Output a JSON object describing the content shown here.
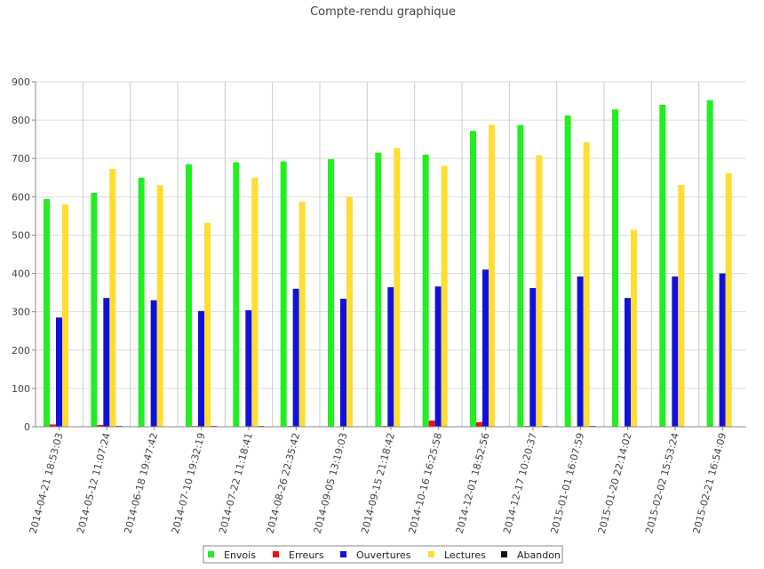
{
  "chart_data": {
    "type": "bar",
    "title": "Compte-rendu graphique",
    "xlabel": "",
    "ylabel": "",
    "ylim": [
      0,
      900
    ],
    "yticks": [
      0,
      100,
      200,
      300,
      400,
      500,
      600,
      700,
      800,
      900
    ],
    "grid": true,
    "legend_position": "bottom",
    "categories": [
      "2014-04-21 18:53:03",
      "2014-05-12 11:07:24",
      "2014-06-18 19:47:42",
      "2014-07-10 19:32:19",
      "2014-07-22 11:18:41",
      "2014-08-26 22:35:42",
      "2014-09-05 13:19:03",
      "2014-09-15 21:18:42",
      "2014-10-16 16:25:58",
      "2014-12-01 18:52:56",
      "2014-12-17 10:20:37",
      "2015-01-01 16:07:59",
      "2015-01-20 22:14:02",
      "2015-02-02 15:53:24",
      "2015-02-21 16:54:09"
    ],
    "series": [
      {
        "name": "Envois",
        "color": "#22ee22",
        "values": [
          594,
          610,
          650,
          685,
          690,
          692,
          698,
          715,
          710,
          772,
          787,
          812,
          828,
          840,
          852
        ]
      },
      {
        "name": "Erreurs",
        "color": "#ee1111",
        "values": [
          6,
          5,
          0,
          2,
          0,
          2,
          0,
          2,
          16,
          12,
          2,
          0,
          0,
          0,
          0
        ]
      },
      {
        "name": "Ouvertures",
        "color": "#1111dd",
        "values": [
          285,
          336,
          330,
          302,
          304,
          360,
          334,
          364,
          366,
          410,
          362,
          392,
          336,
          392,
          400
        ]
      },
      {
        "name": "Lectures",
        "color": "#ffdd33",
        "values": [
          580,
          673,
          630,
          532,
          650,
          587,
          600,
          727,
          680,
          788,
          708,
          742,
          514,
          631,
          662
        ]
      },
      {
        "name": "Abandon",
        "color": "#111111",
        "values": [
          0,
          2,
          0,
          2,
          2,
          0,
          0,
          0,
          0,
          0,
          2,
          2,
          0,
          0,
          0
        ]
      }
    ]
  }
}
